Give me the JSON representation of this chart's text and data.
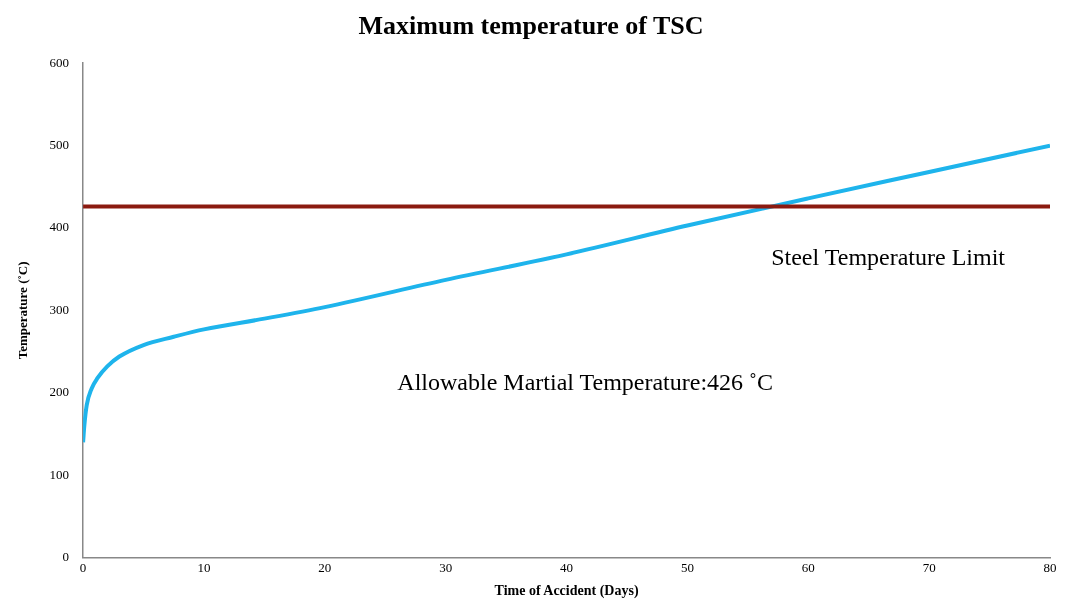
{
  "chart_data": {
    "type": "line",
    "title": "Maximum temperature of TSC",
    "xlabel": "Time of Accident (Days)",
    "ylabel": "Temperature (˚C)",
    "xlim": [
      0,
      80
    ],
    "xticks": [
      0,
      10,
      20,
      30,
      40,
      50,
      60,
      70,
      80
    ],
    "ylim": [
      0,
      600
    ],
    "yticks": [
      0,
      100,
      200,
      300,
      400,
      500,
      600
    ],
    "grid": false,
    "legend": false,
    "marker": "none",
    "line_style": "solid",
    "series": [
      {
        "color": "#1eb4ec",
        "x": [
          0,
          0.1,
          0.3,
          0.7,
          1.2,
          2,
          3,
          5,
          7.5,
          10,
          15,
          20,
          30,
          40,
          50,
          60,
          70,
          80
        ],
        "values": [
          140,
          160,
          185,
          205,
          218,
          232,
          244,
          258,
          268,
          277,
          290,
          304,
          337,
          368,
          403,
          436,
          468,
          500
        ]
      }
    ],
    "ref_lines": [
      {
        "axis": "y",
        "value": 426,
        "label": "Steel Temperature Limit",
        "color": "#8b1a10"
      }
    ],
    "annotations": [
      "Allowable Martial Temperature:426 ˚C"
    ]
  }
}
